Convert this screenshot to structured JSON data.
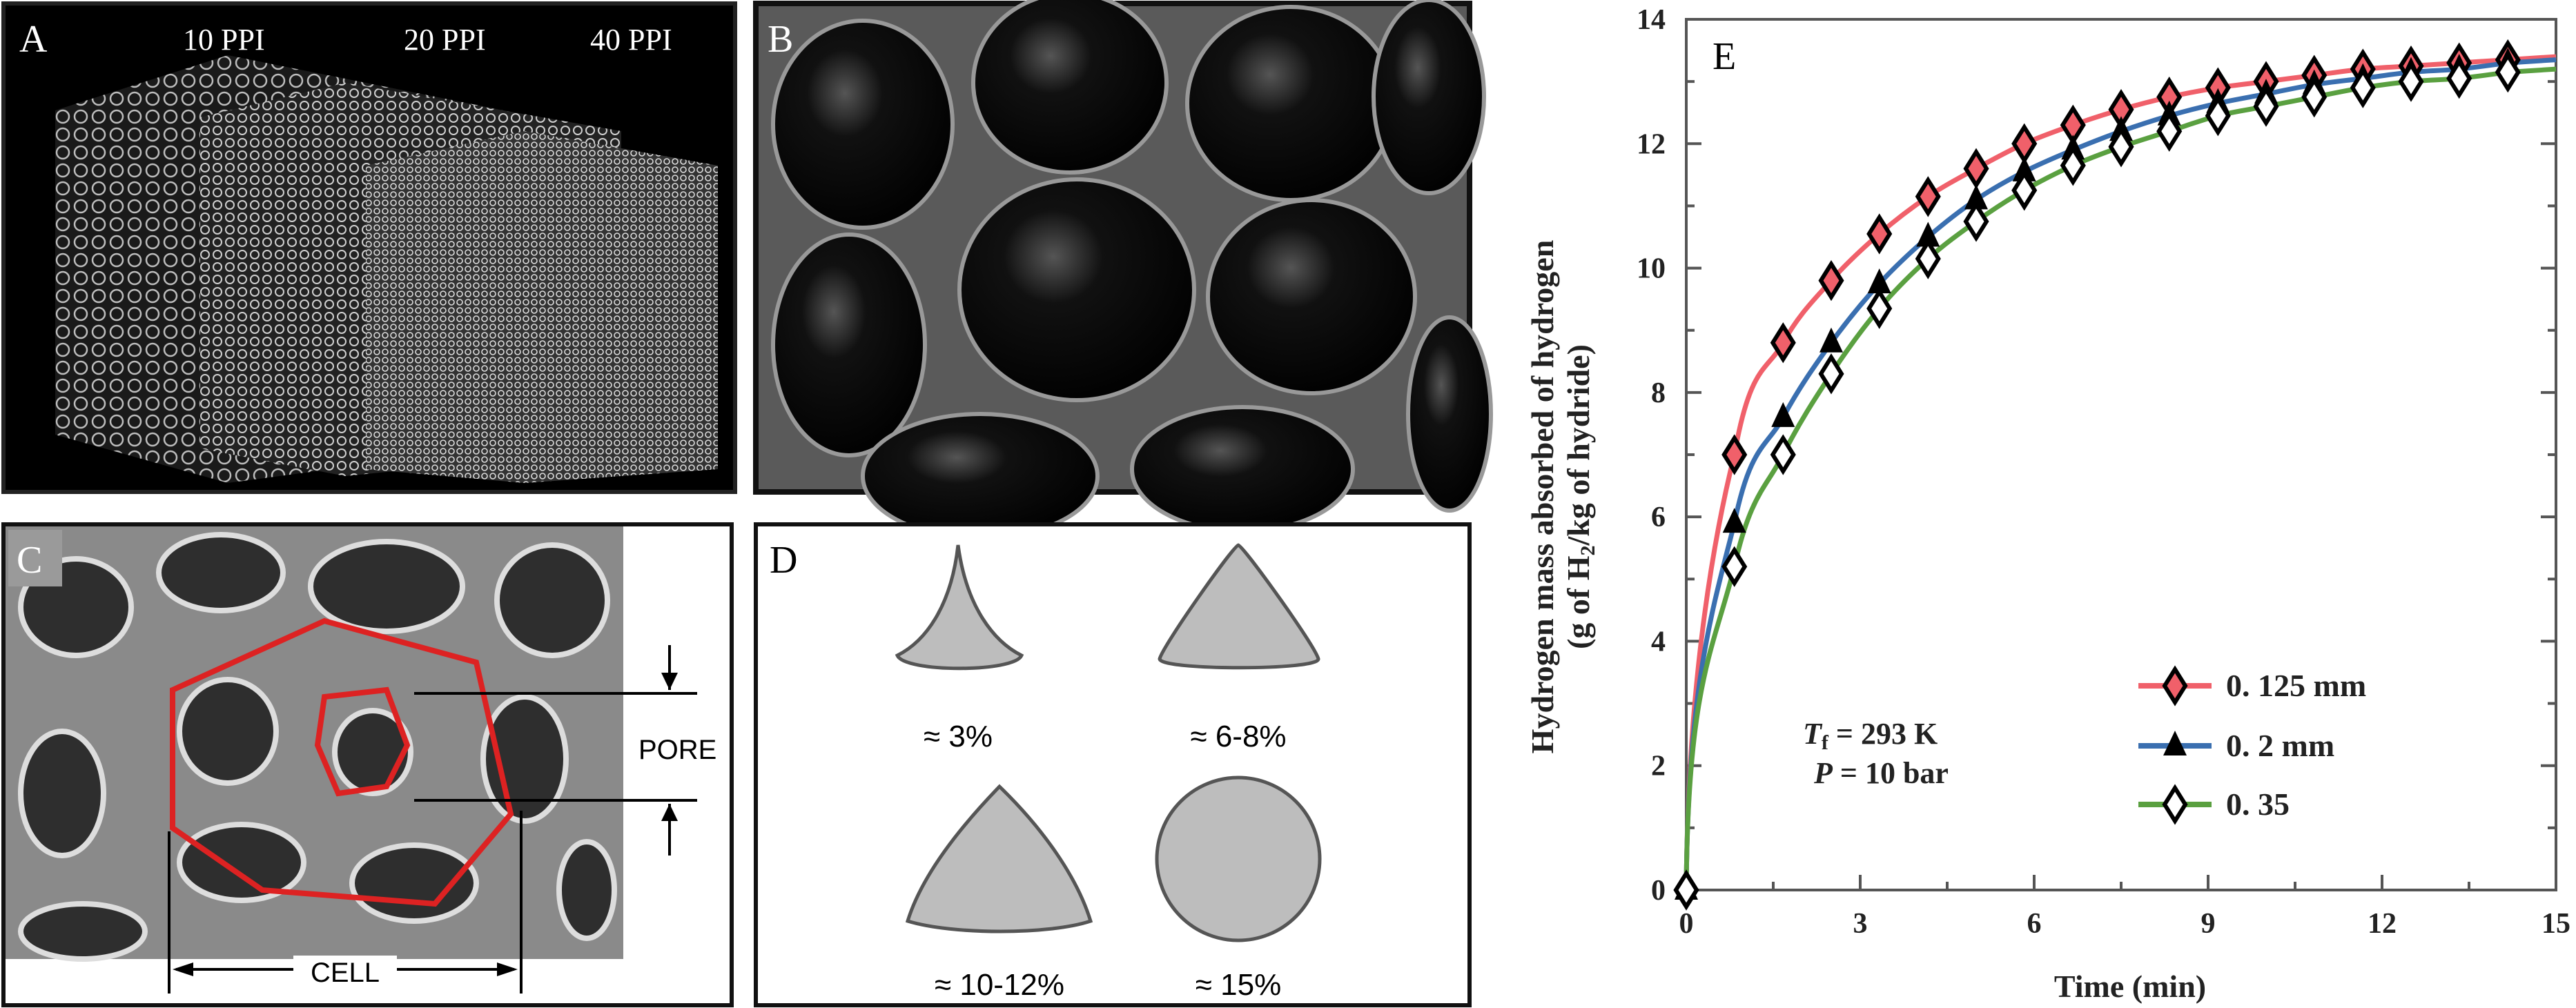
{
  "panels": {
    "a": {
      "label": "A",
      "ppi_labels": [
        "10 PPI",
        "20 PPI",
        "40 PPI"
      ]
    },
    "b": {
      "label": "B"
    },
    "c": {
      "label": "C",
      "pore_label": "PORE",
      "cell_label": "CELL"
    },
    "d": {
      "label": "D",
      "shapes": [
        {
          "shape": "concave-triangle",
          "label": "≈ 3%"
        },
        {
          "shape": "triangle",
          "label": "≈ 6-8%"
        },
        {
          "shape": "convex-triangle",
          "label": "≈ 10-12%"
        },
        {
          "shape": "circle",
          "label": "≈ 15%"
        }
      ]
    },
    "e": {
      "label": "E",
      "annotation_t": "T",
      "annotation_t_sub": "f",
      "annotation_t_rest": " = 293 K",
      "annotation_p": "P",
      "annotation_p_rest": " = 10 bar"
    }
  },
  "chart_data": {
    "type": "line",
    "title": "",
    "xlabel": "Time (min)",
    "ylabel_line1": "Hydrogen mass absorbed of hydrogen",
    "ylabel_line2_pre": "(g of H",
    "ylabel_line2_sub": "2",
    "ylabel_line2_post": "/kg of hydride)",
    "xlim": [
      0,
      15
    ],
    "ylim": [
      0,
      14
    ],
    "xticks": [
      "0",
      "3",
      "6",
      "9",
      "12",
      "15"
    ],
    "yticks": [
      "0",
      "2",
      "4",
      "6",
      "8",
      "10",
      "12",
      "14"
    ],
    "legend_position": "bottom-right",
    "x": [
      0,
      0.83,
      1.67,
      2.5,
      3.33,
      4.17,
      5.0,
      5.83,
      6.67,
      7.5,
      8.33,
      9.17,
      10.0,
      10.83,
      11.67,
      12.5,
      13.33,
      14.17
    ],
    "series": [
      {
        "name": "0. 125 mm",
        "color": "#f0606a",
        "marker": "diamond-filled",
        "values": [
          0,
          7.0,
          8.8,
          9.8,
          10.55,
          11.15,
          11.6,
          12.0,
          12.3,
          12.55,
          12.75,
          12.9,
          13.0,
          13.1,
          13.2,
          13.25,
          13.3,
          13.35
        ]
      },
      {
        "name": "0. 2 mm",
        "color": "#3a6fb0",
        "marker": "triangle",
        "values": [
          0,
          5.9,
          7.6,
          8.8,
          9.75,
          10.5,
          11.1,
          11.55,
          11.9,
          12.2,
          12.45,
          12.65,
          12.8,
          12.95,
          13.05,
          13.15,
          13.2,
          13.3
        ]
      },
      {
        "name": "0. 35",
        "color": "#5aa040",
        "marker": "diamond-open",
        "values": [
          0,
          5.2,
          7.0,
          8.3,
          9.35,
          10.15,
          10.75,
          11.25,
          11.65,
          11.95,
          12.2,
          12.45,
          12.6,
          12.75,
          12.9,
          13.0,
          13.05,
          13.15
        ]
      }
    ]
  }
}
